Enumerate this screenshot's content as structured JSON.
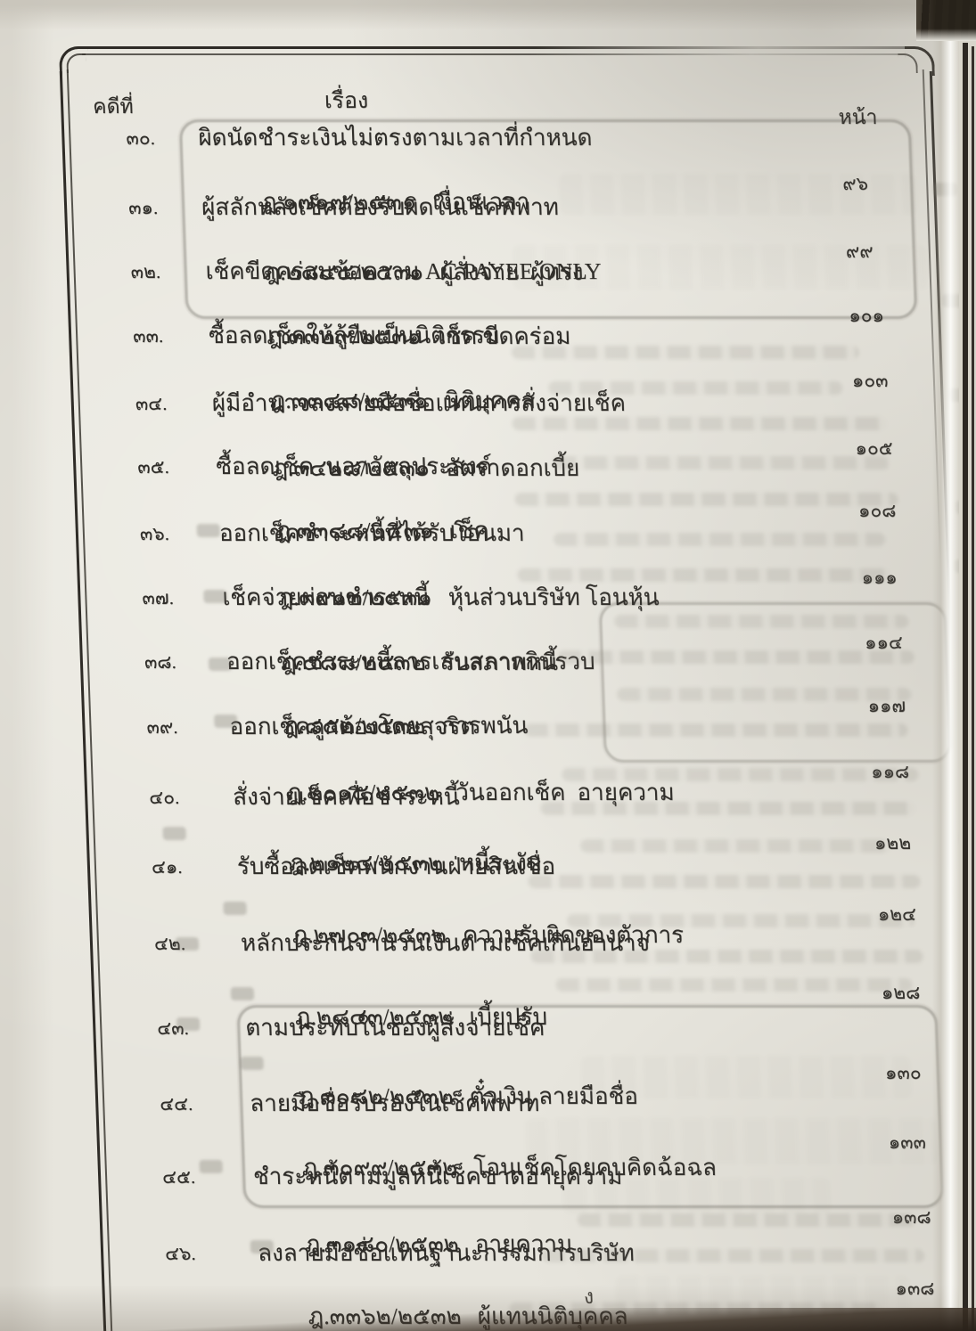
{
  "document": {
    "columns": {
      "case_no": "คดีที่",
      "subject": "เรื่อง",
      "page": "หน้า"
    },
    "footer_mark": "ง",
    "entries": [
      {
        "no": "๓๐.",
        "subject": "ผิดนัดชำระเงินไม่ตรงตามเวลาที่กำหนด",
        "citation": "ฎ.๑๗๑๗/๒๕๓๑",
        "keywords": "เงื่อนเวลา",
        "page": "๙๖"
      },
      {
        "no": "๓๑.",
        "subject": "ผู้สลักหลังเช็คต้องรับผิดในเช็คพิพาท",
        "citation": "ฎ.๒๘๔๕/๒๕๓๑",
        "keywords": "ผู้สั่งจ่าย  ผู้ทรง",
        "page": "๙๙"
      },
      {
        "no": "๓๒.",
        "subject": "เช็คขีดคร่อมข้อความ AC PAYEE ONLY",
        "citation": "ฎ.๓๓๒๙/๒๕๓๑",
        "keywords": "เช็ค ขีดคร่อม",
        "page": "๑๐๑"
      },
      {
        "no": "๓๓.",
        "subject": "ซื้อลดเช็คให้กู้ยืมเป็นนิติกรรม",
        "citation": "ฎ.๓๓๘๘/๒๕๓๑",
        "keywords": "นิติบุคคล",
        "page": "๑๐๓"
      },
      {
        "no": "๓๔.",
        "subject": "ผู้มีอำนาจลงลายมือชื่อแทนการสั่งจ่ายเช็ค",
        "citation": "ฎ.๓๔๒๘/๒๕๓๑",
        "keywords": "อัตราดอกเบี้ย",
        "page": "๑๐๕"
      },
      {
        "no": "๓๕.",
        "subject": "ซื้อลดเช็ค  นอกวัตถุประสงค์",
        "citation": "ฎ.๓๓๘๘/๒๕๓๑",
        "keywords": "เช็ค",
        "page": "๑๐๘"
      },
      {
        "no": "๓๖.",
        "subject": "ออกเช็คชำระหนี้ที่ได้รับโอนมา",
        "citation": "ฎ.๓๙๑๓/๒๕๓๑",
        "keywords": "หุ้นส่วนบริษัท โอนหุ้น",
        "page": "๑๑๑"
      },
      {
        "no": "๓๗.",
        "subject": "เช็คจ่ายผ่อนชำระหนี้",
        "citation": "ฎ.๕๘๘/๒๕๓๒",
        "keywords": "รับสภาพหนี้",
        "page": "๑๑๔"
      },
      {
        "no": "๓๘.",
        "subject": "ออกเช็คชำระหนี้การเล่นสลากกินรวบ",
        "citation": "ฎ.๘๕๒/๒๕๓๒",
        "keywords": "การพนัน",
        "page": "๑๑๗"
      },
      {
        "no": "๓๙.",
        "subject": "ออกเช็คถูกต้องโดยสุจริต",
        "citation": "ฎ.๒๐๑๕/๒๕๓๒",
        "keywords": "วันออกเช็ค  อายุความ",
        "page": "๑๑๘"
      },
      {
        "no": "๔๐.",
        "subject": "สั่งจ่ายเช็คเพื่อชำระหนี้",
        "citation": "ฎ.๒๑๒๔/๒๕๓๒",
        "keywords": "หนี้ระงับ",
        "page": "๑๒๒"
      },
      {
        "no": "๔๑.",
        "subject": "รับซื้อลดเช็คพนักงานฝ่ายสินเชื่อ",
        "citation": "ฎ.๒๗๐๓/๒๕๓๒",
        "keywords": "ความรับผิดของตัวการ",
        "page": "๑๒๔"
      },
      {
        "no": "๔๒.",
        "subject": "หลักประกันจำนวนเงินตามเช็คเกินอำนาจ",
        "citation": "ฎ.๒๘๔๓/๒๕๓๒",
        "keywords": "เบี้ยปรับ",
        "page": "๑๒๘"
      },
      {
        "no": "๔๓.",
        "subject": "ตามประทับในช่องผู้สั่งจ่ายเช็ค",
        "citation": "ฎ.๓๐๘๒/๒๕๓๒",
        "keywords": "ตั๋วเงิน ลายมือชื่อ",
        "page": "๑๓๐"
      },
      {
        "no": "๔๔.",
        "subject": "ลายมือชื่อรับรองในเช็คพิพาท",
        "citation": "ฎ.๓๐๙๙/๒๕๓๒",
        "keywords": "โอนเช็คโดยคบคิดฉ้อฉล",
        "page": "๑๓๓"
      },
      {
        "no": "๔๕.",
        "subject": "ชำระหนี้ตามมูลหนี้เช็คขาดอายุความ",
        "citation": "ฎ.๓๑๘๐/๒๕๓๒",
        "keywords": "อายุความ",
        "page": "๑๓๘"
      },
      {
        "no": "๔๖.",
        "subject": "ลงลายมือชื่อแทนฐานะกรรมการบริษัท",
        "citation": "ฎ.๓๓๖๒/๒๕๓๒",
        "keywords": "ผู้แทนนิติบุคคล",
        "page": "๑๓๘"
      }
    ]
  }
}
